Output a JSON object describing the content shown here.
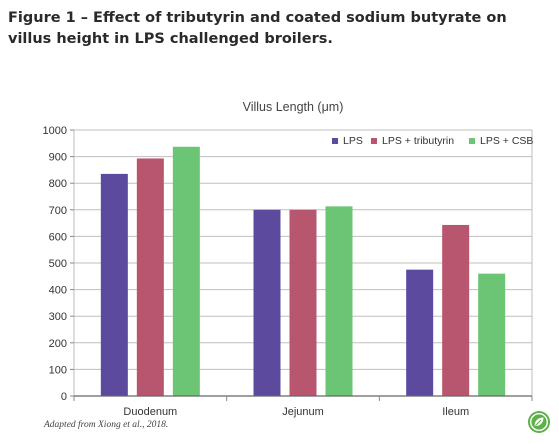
{
  "figure": {
    "title": "Figure 1 – Effect of tributyrin and coated sodium butyrate on villus height in LPS challenged broilers.",
    "source": "Adapted from Xiong et al., 2018."
  },
  "logo": {
    "icon": "leaf-badge-icon",
    "color": "#5fb04a"
  },
  "chart_data": {
    "type": "bar",
    "title": "Villus Length (μm)",
    "xlabel": "",
    "ylabel": "",
    "categories": [
      "Duodenum",
      "Jejunum",
      "Ileum"
    ],
    "series": [
      {
        "name": "LPS",
        "color": "#5b4a9e",
        "values": [
          835,
          700,
          475
        ]
      },
      {
        "name": "LPS + tributyrin",
        "color": "#b9566f",
        "values": [
          893,
          700,
          643
        ]
      },
      {
        "name": "LPS + CSB",
        "color": "#6cc475",
        "values": [
          937,
          713,
          460
        ]
      }
    ],
    "ylim": [
      0,
      1000
    ],
    "yticks": [
      0,
      100,
      200,
      300,
      400,
      500,
      600,
      700,
      800,
      900,
      1000
    ],
    "grid": true,
    "legend": "top-right"
  }
}
